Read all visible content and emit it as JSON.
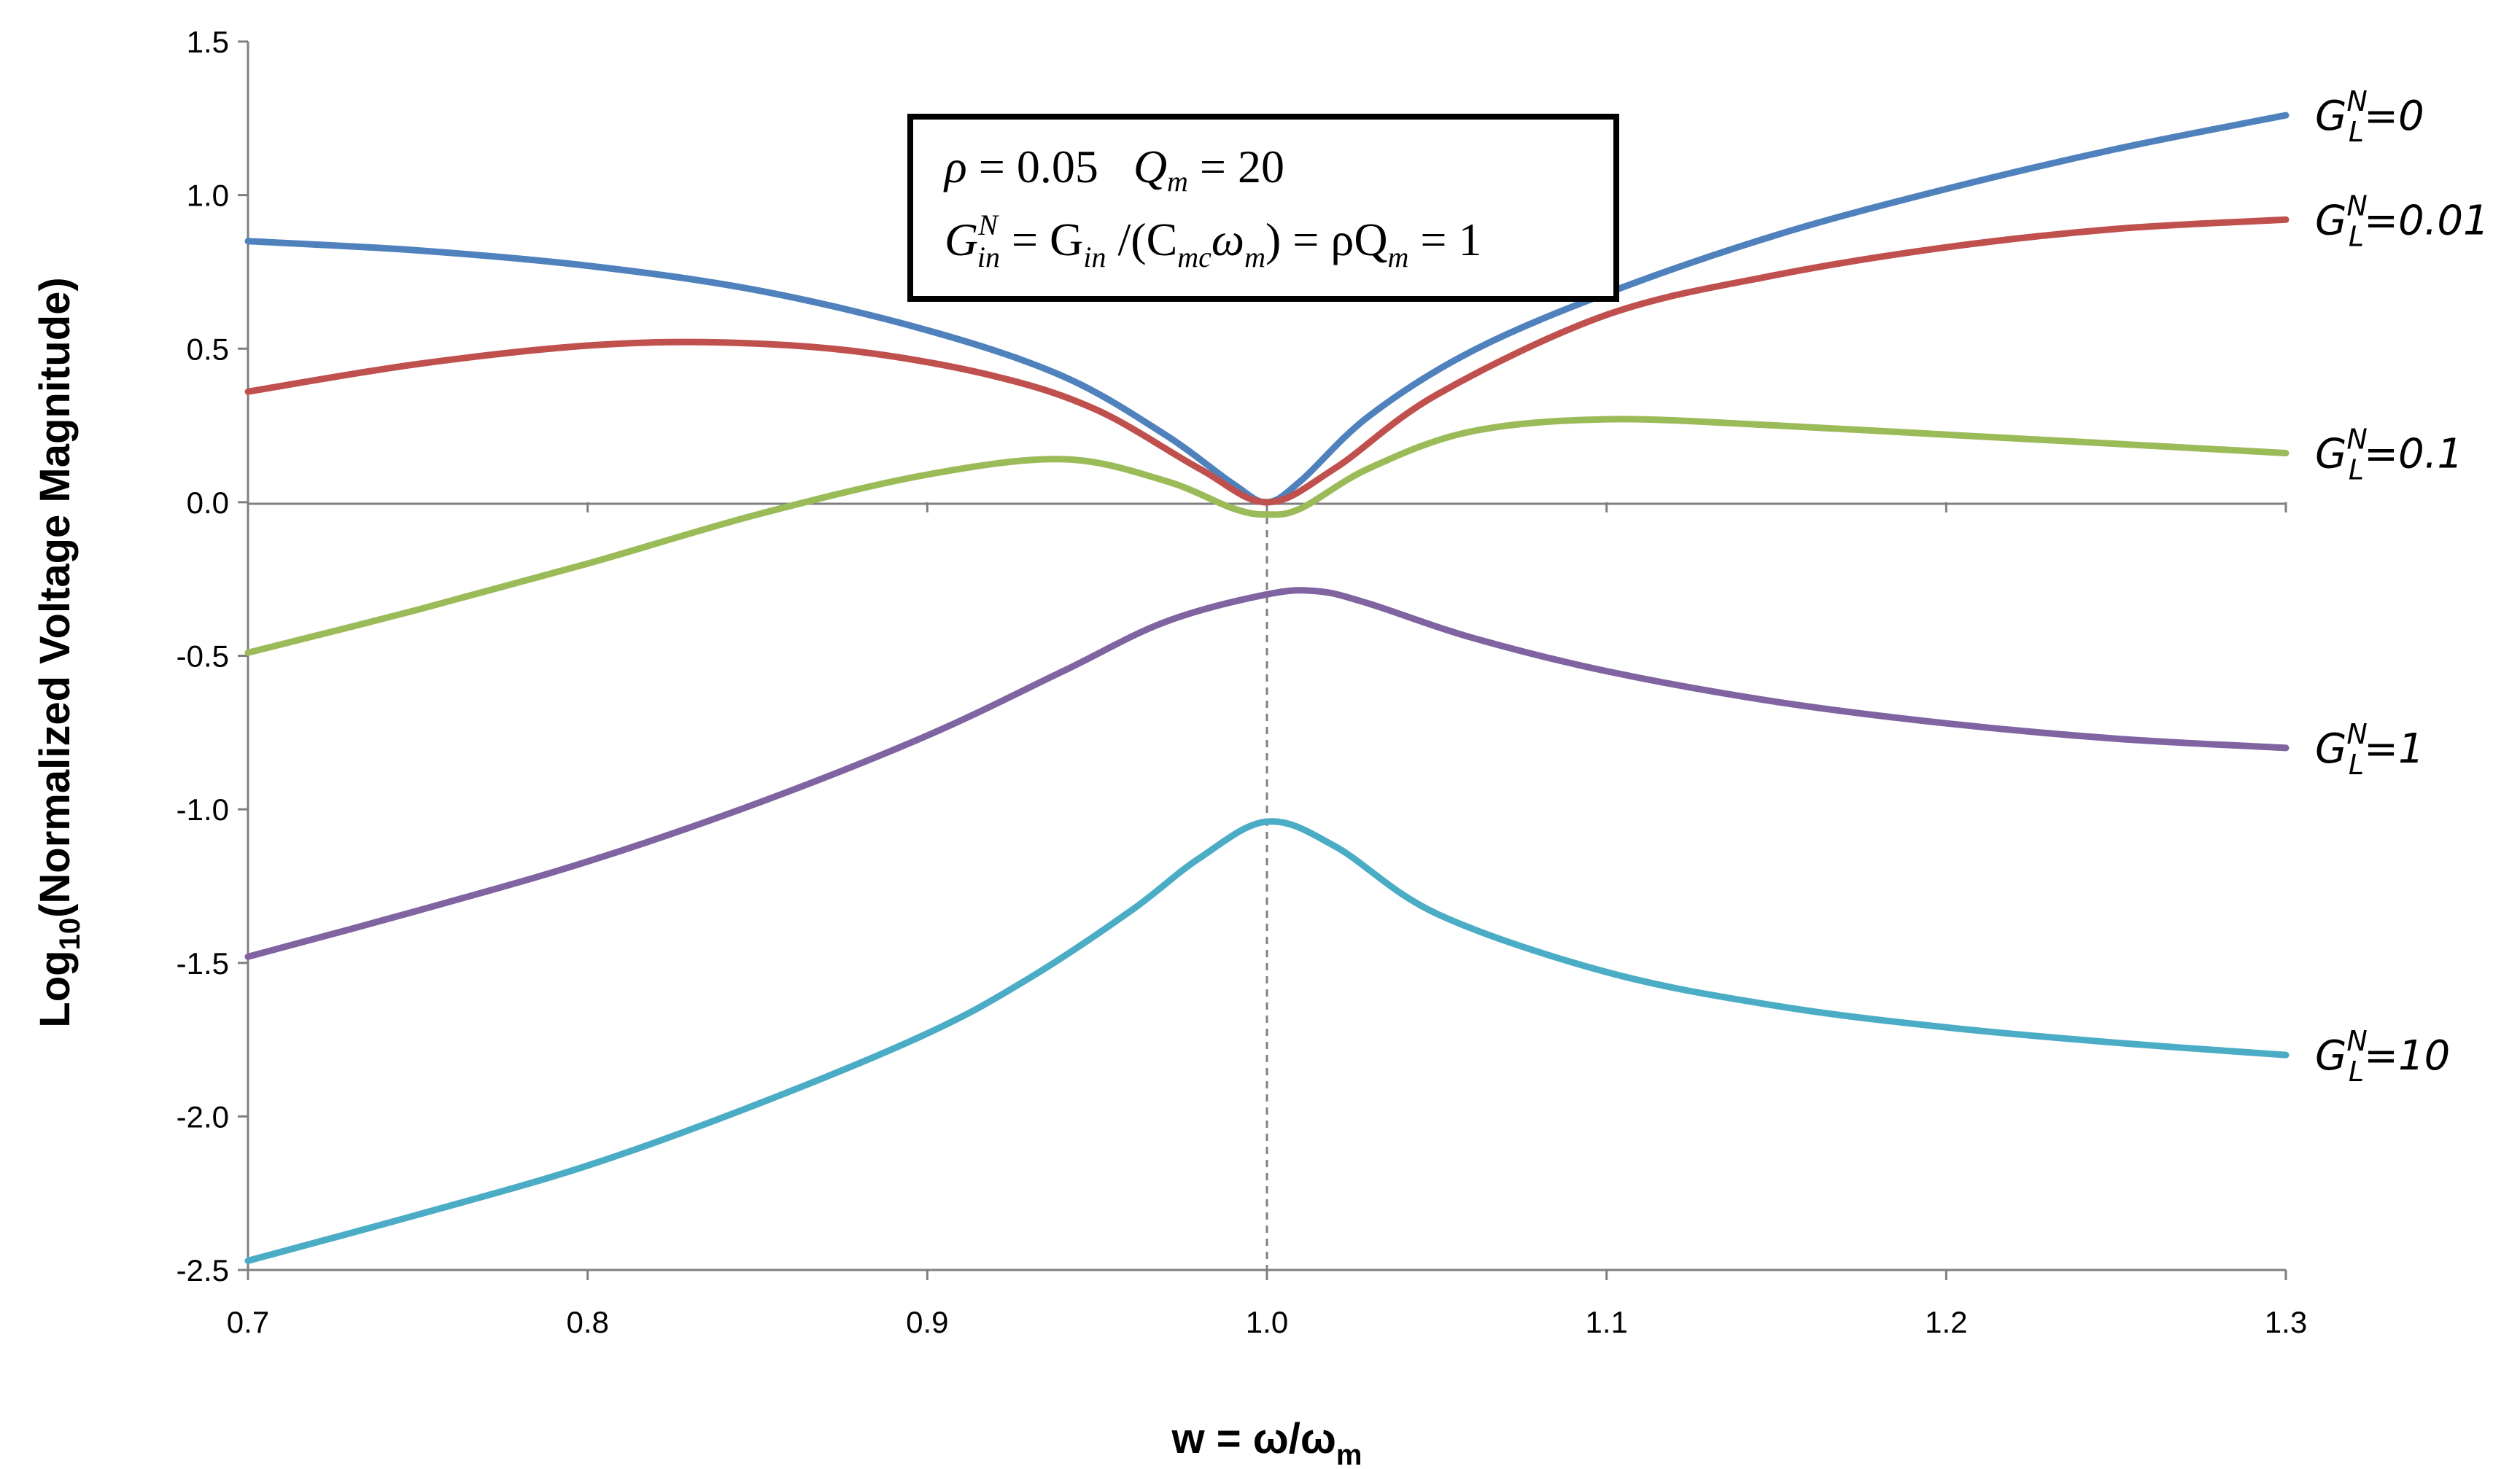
{
  "chart_data": {
    "type": "line",
    "title": "",
    "xlabel": {
      "main": "w = ω/ω",
      "sub": "m"
    },
    "ylabel": {
      "pre": "Log",
      "sub": "10",
      "post": "(Normalized Voltage Magnitude)"
    },
    "xlim": [
      0.7,
      1.3
    ],
    "ylim": [
      -2.5,
      1.5
    ],
    "x_ticks": [
      "0.7",
      "0.8",
      "0.9",
      "1.0",
      "1.1",
      "1.2",
      "1.3"
    ],
    "y_ticks": [
      "1.5",
      "1.0",
      "0.5",
      "0.0",
      "-0.5",
      "-1.0",
      "-1.5",
      "-2.0",
      "-2.5"
    ],
    "grid": false,
    "reference_line": {
      "x": 1.0,
      "style": "dashed"
    },
    "annotation": {
      "line1": {
        "rho": "ρ",
        "eq1": " = 0.05   ",
        "Q": "Q",
        "Qsub": "m",
        "eq2": " = 20"
      },
      "line2": {
        "G": "G",
        "Gsub": "in",
        "Gsup": "N",
        "mid": " = G",
        "mid_sub": "in",
        "slash": " /(C",
        "C_sub": "mc",
        "omega": "ω",
        "omega_sub": "m",
        "tail": ") = ρQ",
        "tail_sub": "m",
        "end": " = 1"
      }
    },
    "series": [
      {
        "name": "G_L^N=0",
        "label_main": "G",
        "label_sub": "L",
        "label_sup": "N",
        "label_value": "=0",
        "color": "#4F81BD",
        "x": [
          0.7,
          0.75,
          0.8,
          0.85,
          0.9,
          0.94,
          0.97,
          0.99,
          1.0,
          1.01,
          1.03,
          1.06,
          1.1,
          1.15,
          1.2,
          1.25,
          1.3
        ],
        "y": [
          0.85,
          0.82,
          0.77,
          0.69,
          0.56,
          0.41,
          0.22,
          0.06,
          0.0,
          0.07,
          0.28,
          0.49,
          0.68,
          0.87,
          1.02,
          1.15,
          1.26
        ]
      },
      {
        "name": "G_L^N=0.01",
        "label_main": "G",
        "label_sub": "L",
        "label_sup": "N",
        "label_value": "=0.01",
        "color": "#C0504D",
        "x": [
          0.7,
          0.75,
          0.8,
          0.84,
          0.88,
          0.92,
          0.95,
          0.98,
          1.0,
          1.02,
          1.05,
          1.1,
          1.15,
          1.2,
          1.25,
          1.3
        ],
        "y": [
          0.36,
          0.45,
          0.51,
          0.52,
          0.49,
          0.41,
          0.3,
          0.11,
          0.0,
          0.11,
          0.35,
          0.61,
          0.74,
          0.83,
          0.89,
          0.92
        ]
      },
      {
        "name": "G_L^N=0.1",
        "label_main": "G",
        "label_sub": "L",
        "label_sup": "N",
        "label_value": "=0.1",
        "color": "#9BBB59",
        "x": [
          0.7,
          0.75,
          0.8,
          0.85,
          0.9,
          0.94,
          0.97,
          0.99,
          1.0,
          1.01,
          1.03,
          1.06,
          1.1,
          1.15,
          1.2,
          1.25,
          1.3
        ],
        "y": [
          -0.49,
          -0.35,
          -0.2,
          -0.04,
          0.09,
          0.14,
          0.07,
          -0.02,
          -0.04,
          -0.02,
          0.11,
          0.23,
          0.27,
          0.25,
          0.22,
          0.19,
          0.16
        ]
      },
      {
        "name": "G_L^N=1",
        "label_main": "G",
        "label_sub": "L",
        "label_sup": "N",
        "label_value": "=1",
        "color": "#8064A2",
        "x": [
          0.7,
          0.75,
          0.8,
          0.85,
          0.9,
          0.94,
          0.97,
          1.0,
          1.015,
          1.03,
          1.06,
          1.1,
          1.15,
          1.2,
          1.25,
          1.3
        ],
        "y": [
          -1.48,
          -1.33,
          -1.17,
          -0.98,
          -0.76,
          -0.55,
          -0.39,
          -0.3,
          -0.29,
          -0.33,
          -0.44,
          -0.55,
          -0.65,
          -0.72,
          -0.77,
          -0.8
        ]
      },
      {
        "name": "G_L^N=10",
        "label_main": "G",
        "label_sub": "L",
        "label_sup": "N",
        "label_value": "=10",
        "color": "#4BACC6",
        "x": [
          0.7,
          0.75,
          0.8,
          0.85,
          0.9,
          0.93,
          0.96,
          0.98,
          1.0,
          1.02,
          1.05,
          1.1,
          1.15,
          1.2,
          1.25,
          1.3
        ],
        "y": [
          -2.47,
          -2.32,
          -2.16,
          -1.96,
          -1.73,
          -1.55,
          -1.33,
          -1.16,
          -1.04,
          -1.12,
          -1.34,
          -1.53,
          -1.64,
          -1.71,
          -1.76,
          -1.8
        ]
      }
    ]
  }
}
